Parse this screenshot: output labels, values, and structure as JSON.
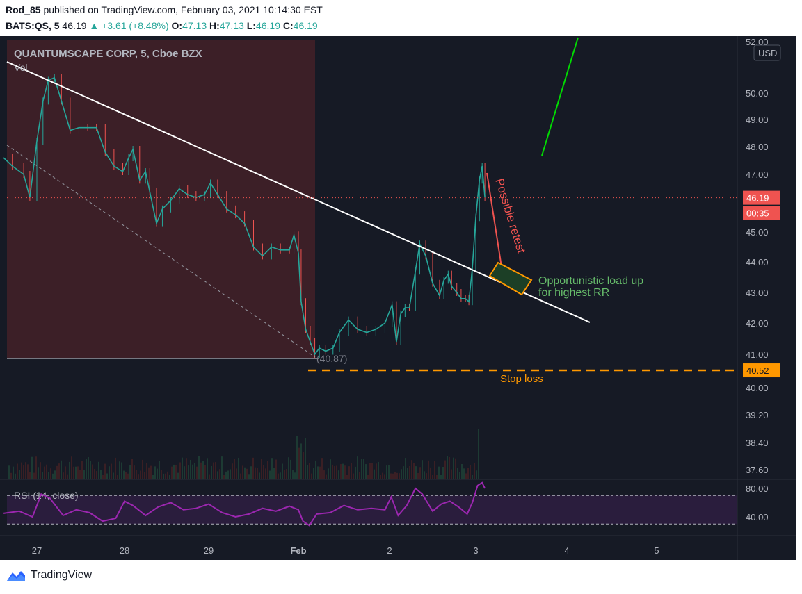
{
  "header": {
    "publisher": "Rod_85",
    "published_text": "published on TradingView.com, February 03, 2021 10:14:30 EST",
    "symbol": "BATS:QS, 5",
    "last": "46.19",
    "change": "▲ +3.61 (+8.48%)",
    "o_label": "O:",
    "o_val": "47.13",
    "h_label": "H:",
    "h_val": "47.13",
    "l_label": "L:",
    "l_val": "46.19",
    "c_label": "C:",
    "c_val": "46.19"
  },
  "footer": {
    "brand": "TradingView"
  },
  "chart_data": {
    "type": "candlestick",
    "title": "QUANTUMSCAPE CORP, 5, Cboe BZX",
    "volume_label": "Vol",
    "currency": "USD",
    "x_ticks": [
      "27",
      "28",
      "29",
      "Feb",
      "2",
      "3",
      "4",
      "5"
    ],
    "y_ticks": [
      "52.00",
      "50.00",
      "49.00",
      "48.00",
      "47.00",
      "45.00",
      "44.00",
      "43.00",
      "42.00",
      "41.00",
      "40.00",
      "39.20",
      "38.40",
      "37.60"
    ],
    "price_ticks": [
      52,
      50,
      49,
      48,
      47,
      45,
      44,
      43,
      42,
      41,
      40,
      39.2,
      38.4,
      37.6
    ],
    "last_price": {
      "value": 46.19,
      "label": "46.19",
      "countdown": "00:35"
    },
    "stop_loss": {
      "value": 40.52,
      "label": "40.52",
      "text": "Stop loss"
    },
    "low_marker": {
      "value": 40.87,
      "label": "(40.87)"
    },
    "price_path": [
      [
        26.62,
        47.6
      ],
      [
        26.72,
        47.3
      ],
      [
        26.85,
        47.0
      ],
      [
        26.92,
        46.2
      ],
      [
        27.0,
        48.2
      ],
      [
        27.07,
        49.7
      ],
      [
        27.13,
        50.5
      ],
      [
        27.2,
        50.6
      ],
      [
        27.28,
        49.7
      ],
      [
        27.38,
        48.6
      ],
      [
        27.48,
        48.7
      ],
      [
        27.58,
        48.7
      ],
      [
        27.68,
        48.7
      ],
      [
        27.78,
        47.8
      ],
      [
        27.88,
        47.3
      ],
      [
        27.98,
        47.1
      ],
      [
        28.05,
        47.6
      ],
      [
        28.1,
        47.9
      ],
      [
        28.18,
        46.8
      ],
      [
        28.25,
        47.1
      ],
      [
        28.3,
        46.4
      ],
      [
        28.38,
        45.3
      ],
      [
        28.45,
        45.8
      ],
      [
        28.55,
        46.1
      ],
      [
        28.65,
        46.5
      ],
      [
        28.75,
        46.3
      ],
      [
        28.85,
        46.2
      ],
      [
        28.95,
        46.3
      ],
      [
        29.02,
        46.7
      ],
      [
        29.1,
        46.3
      ],
      [
        29.2,
        45.8
      ],
      [
        29.3,
        45.6
      ],
      [
        29.4,
        45.3
      ],
      [
        29.5,
        44.5
      ],
      [
        29.6,
        44.2
      ],
      [
        29.7,
        44.5
      ],
      [
        29.8,
        44.4
      ],
      [
        29.9,
        44.4
      ],
      [
        29.95,
        44.9
      ],
      [
        30.0,
        44.3
      ],
      [
        30.03,
        42.7
      ],
      [
        30.08,
        41.8
      ],
      [
        30.13,
        41.4
      ],
      [
        30.18,
        41.0
      ],
      [
        30.23,
        41.2
      ],
      [
        30.3,
        41.1
      ],
      [
        30.38,
        41.2
      ],
      [
        30.45,
        41.7
      ],
      [
        30.55,
        42.1
      ],
      [
        30.65,
        41.8
      ],
      [
        30.75,
        41.7
      ],
      [
        30.85,
        41.8
      ],
      [
        30.95,
        42.0
      ],
      [
        31.03,
        42.6
      ],
      [
        31.08,
        41.4
      ],
      [
        31.13,
        42.3
      ],
      [
        31.18,
        42.5
      ],
      [
        31.23,
        42.5
      ],
      [
        31.3,
        43.7
      ],
      [
        31.35,
        44.6
      ],
      [
        31.42,
        44.2
      ],
      [
        31.5,
        43.3
      ],
      [
        31.58,
        42.9
      ],
      [
        31.63,
        43.4
      ],
      [
        31.68,
        43.6
      ],
      [
        31.72,
        43.2
      ],
      [
        31.78,
        43.0
      ],
      [
        31.83,
        42.8
      ],
      [
        31.88,
        42.8
      ],
      [
        31.92,
        42.7
      ],
      [
        31.96,
        43.8
      ],
      [
        32.0,
        45.5
      ],
      [
        32.04,
        46.8
      ],
      [
        32.07,
        47.3
      ],
      [
        32.1,
        46.2
      ]
    ],
    "rsi": {
      "label": "RSI (14, close)",
      "ticks": [
        "80.00",
        "40.00"
      ],
      "tick_values": [
        80,
        40
      ],
      "band": [
        30,
        70
      ],
      "series": [
        [
          26.62,
          45
        ],
        [
          26.8,
          48
        ],
        [
          26.95,
          40
        ],
        [
          27.05,
          72
        ],
        [
          27.15,
          66
        ],
        [
          27.3,
          42
        ],
        [
          27.45,
          50
        ],
        [
          27.6,
          46
        ],
        [
          27.75,
          34
        ],
        [
          27.9,
          38
        ],
        [
          28.0,
          62
        ],
        [
          28.1,
          56
        ],
        [
          28.25,
          42
        ],
        [
          28.4,
          54
        ],
        [
          28.55,
          60
        ],
        [
          28.7,
          50
        ],
        [
          28.85,
          52
        ],
        [
          29.0,
          58
        ],
        [
          29.15,
          46
        ],
        [
          29.3,
          40
        ],
        [
          29.45,
          44
        ],
        [
          29.6,
          52
        ],
        [
          29.75,
          48
        ],
        [
          29.9,
          55
        ],
        [
          30.0,
          50
        ],
        [
          30.05,
          34
        ],
        [
          30.12,
          28
        ],
        [
          30.2,
          44
        ],
        [
          30.35,
          46
        ],
        [
          30.5,
          56
        ],
        [
          30.65,
          50
        ],
        [
          30.8,
          52
        ],
        [
          30.95,
          50
        ],
        [
          31.02,
          68
        ],
        [
          31.1,
          42
        ],
        [
          31.2,
          56
        ],
        [
          31.3,
          80
        ],
        [
          31.38,
          72
        ],
        [
          31.5,
          48
        ],
        [
          31.6,
          58
        ],
        [
          31.7,
          62
        ],
        [
          31.8,
          54
        ],
        [
          31.9,
          44
        ],
        [
          31.96,
          60
        ],
        [
          32.02,
          84
        ],
        [
          32.07,
          88
        ],
        [
          32.1,
          80
        ]
      ]
    },
    "annotations": {
      "retest_text": "Possible retest",
      "load_up_text": [
        "Opportunistic load up",
        "for highest RR"
      ]
    }
  }
}
